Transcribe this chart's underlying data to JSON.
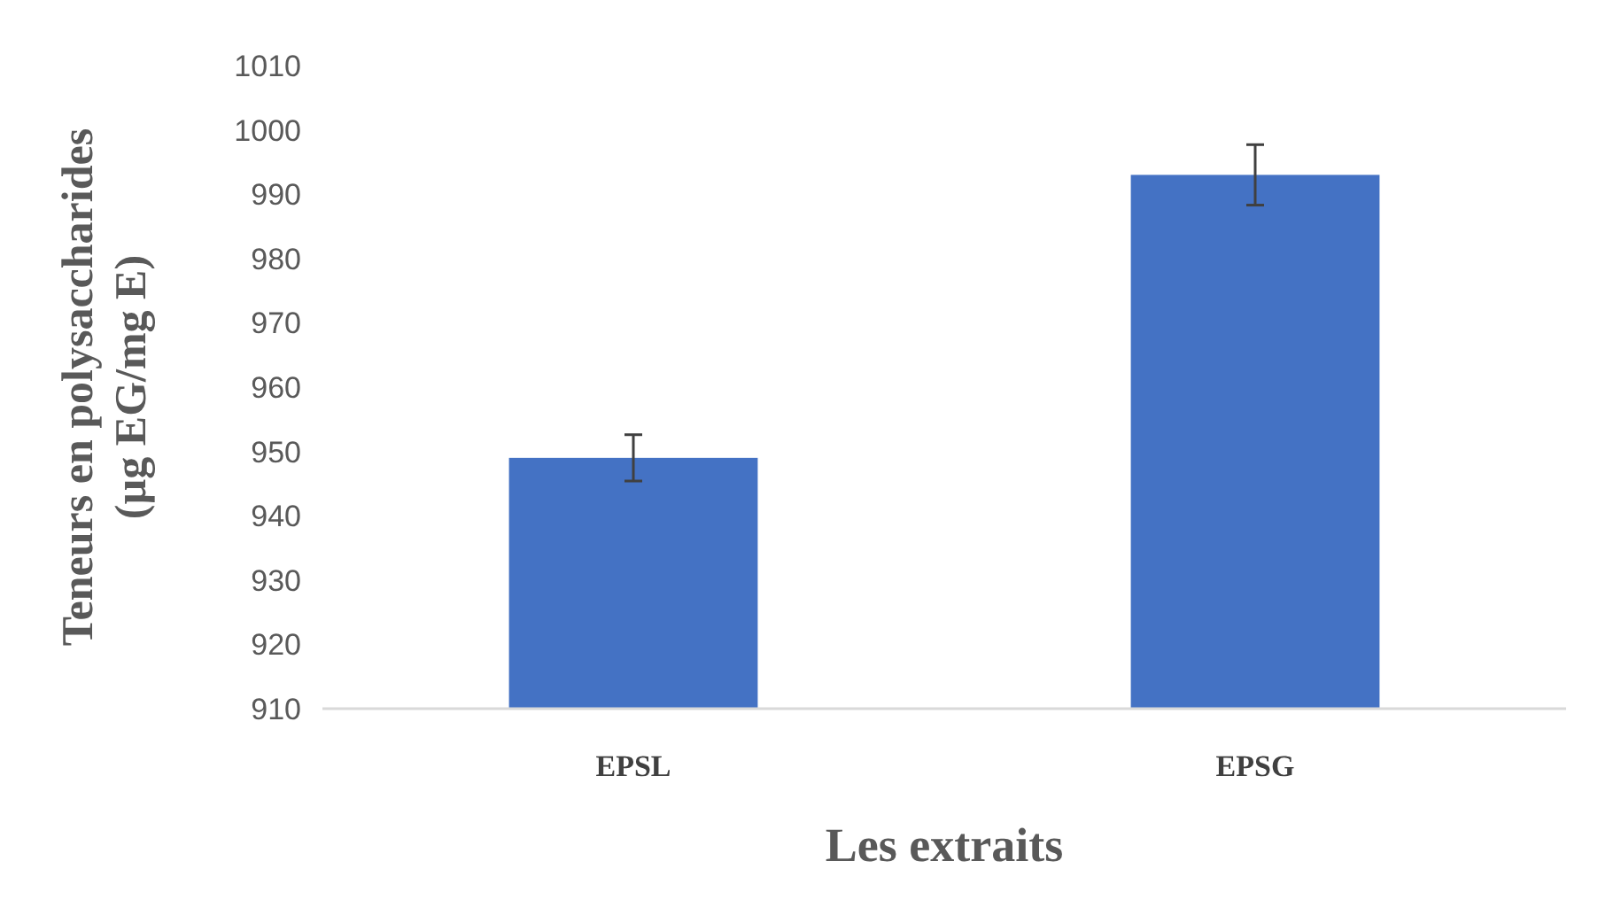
{
  "chart_data": {
    "type": "bar",
    "xlabel": "Les extraits",
    "ylabel": "Teneurs en polysaccharides\n(µg EG/mg E)",
    "categories": [
      "EPSL",
      "EPSG"
    ],
    "values": [
      949,
      993
    ],
    "errors": [
      3.6,
      4.7
    ],
    "color": "#4472c4",
    "ylim": [
      910,
      1010
    ],
    "yticks": [
      910,
      920,
      930,
      940,
      950,
      960,
      970,
      980,
      990,
      1000,
      1010
    ],
    "grid": false
  }
}
